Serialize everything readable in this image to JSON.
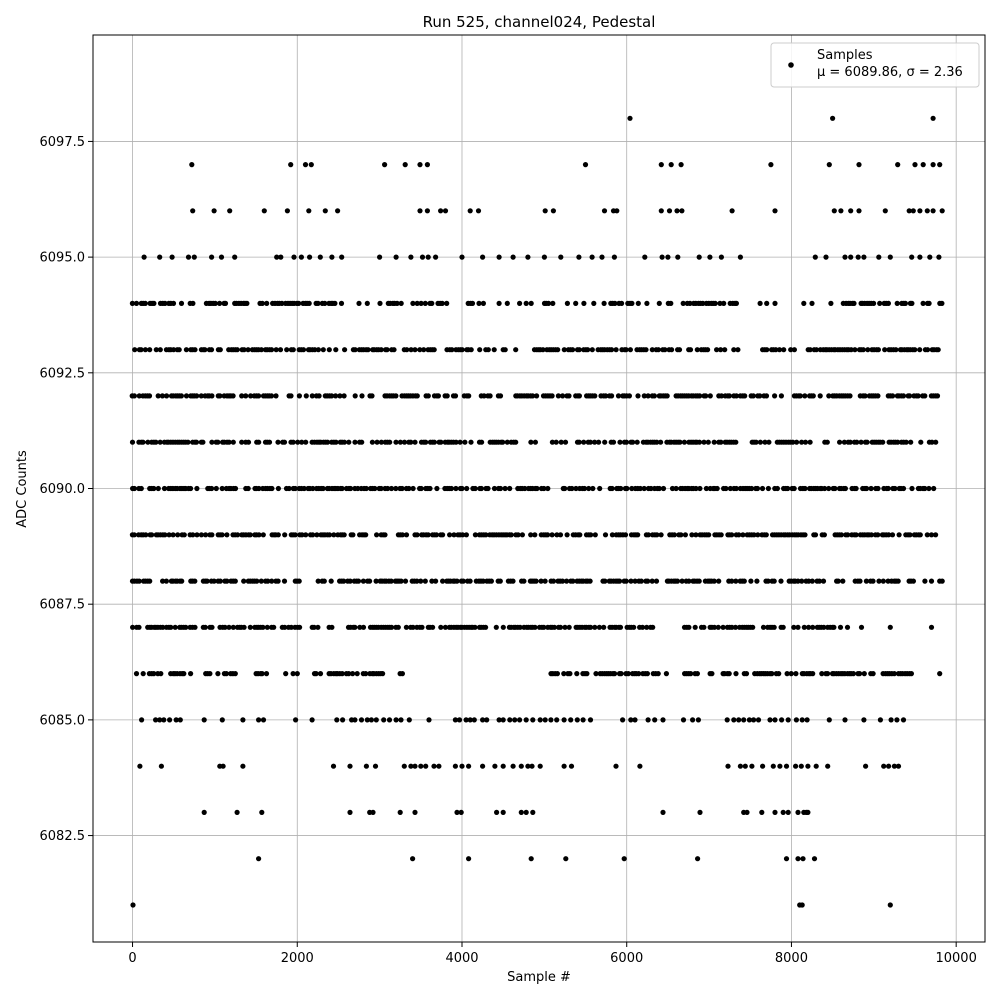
{
  "chart_data": {
    "type": "scatter",
    "title": "Run 525, channel024, Pedestal",
    "xlabel": "Sample #",
    "ylabel": "ADC Counts",
    "xlim": [
      -480,
      10350
    ],
    "ylim": [
      6080.2,
      6099.8
    ],
    "x_ticks": [
      0,
      2000,
      4000,
      6000,
      8000,
      10000
    ],
    "x_tick_labels": [
      "0",
      "2000",
      "4000",
      "6000",
      "8000",
      "10000"
    ],
    "y_ticks": [
      6082.5,
      6085.0,
      6087.5,
      6090.0,
      6092.5,
      6095.0,
      6097.5
    ],
    "y_tick_labels": [
      "6082.5",
      "6085.0",
      "6087.5",
      "6090.0",
      "6092.5",
      "6095.0",
      "6097.5"
    ],
    "grid": true,
    "legend": {
      "placement": "top-right",
      "label_line1": "Samples",
      "label_line2": "μ = 6089.86, σ = 2.36"
    },
    "marker_color": "#000000",
    "series": [
      {
        "name": "Samples",
        "points": [
          [
            6040,
            6098
          ],
          [
            8500,
            6098
          ],
          [
            9720,
            6098
          ],
          [
            720,
            6097
          ],
          [
            1920,
            6097
          ],
          [
            2100,
            6097
          ],
          [
            2170,
            6097
          ],
          [
            3060,
            6097
          ],
          [
            3310,
            6097
          ],
          [
            3490,
            6097
          ],
          [
            3580,
            6097
          ],
          [
            5500,
            6097
          ],
          [
            6420,
            6097
          ],
          [
            6540,
            6097
          ],
          [
            6660,
            6097
          ],
          [
            7750,
            6097
          ],
          [
            8460,
            6097
          ],
          [
            8820,
            6097
          ],
          [
            9290,
            6097
          ],
          [
            9500,
            6097
          ],
          [
            9600,
            6097
          ],
          [
            9720,
            6097
          ],
          [
            9800,
            6097
          ],
          [
            730,
            6096
          ],
          [
            990,
            6096
          ],
          [
            1180,
            6096
          ],
          [
            1600,
            6096
          ],
          [
            1880,
            6096
          ],
          [
            2140,
            6096
          ],
          [
            2340,
            6096
          ],
          [
            2490,
            6096
          ],
          [
            3490,
            6096
          ],
          [
            3580,
            6096
          ],
          [
            3740,
            6096
          ],
          [
            3800,
            6096
          ],
          [
            4100,
            6096
          ],
          [
            4200,
            6096
          ],
          [
            5010,
            6096
          ],
          [
            5110,
            6096
          ],
          [
            5730,
            6096
          ],
          [
            5840,
            6096
          ],
          [
            5880,
            6096
          ],
          [
            6420,
            6096
          ],
          [
            6520,
            6096
          ],
          [
            6610,
            6096
          ],
          [
            6670,
            6096
          ],
          [
            7280,
            6096
          ],
          [
            7800,
            6096
          ],
          [
            8520,
            6096
          ],
          [
            8600,
            6096
          ],
          [
            8720,
            6096
          ],
          [
            8820,
            6096
          ],
          [
            9140,
            6096
          ],
          [
            9430,
            6096
          ],
          [
            9480,
            6096
          ],
          [
            9560,
            6096
          ],
          [
            9650,
            6096
          ],
          [
            9720,
            6096
          ],
          [
            9830,
            6096
          ],
          [
            140,
            6095
          ],
          [
            330,
            6095
          ],
          [
            480,
            6095
          ],
          [
            680,
            6095
          ],
          [
            750,
            6095
          ],
          [
            960,
            6095
          ],
          [
            1080,
            6095
          ],
          [
            1240,
            6095
          ],
          [
            1750,
            6095
          ],
          [
            1800,
            6095
          ],
          [
            1960,
            6095
          ],
          [
            2050,
            6095
          ],
          [
            2150,
            6095
          ],
          [
            2280,
            6095
          ],
          [
            2420,
            6095
          ],
          [
            2540,
            6095
          ],
          [
            3000,
            6095
          ],
          [
            3200,
            6095
          ],
          [
            3380,
            6095
          ],
          [
            3520,
            6095
          ],
          [
            3590,
            6095
          ],
          [
            3680,
            6095
          ],
          [
            4000,
            6095
          ],
          [
            4250,
            6095
          ],
          [
            4450,
            6095
          ],
          [
            4620,
            6095
          ],
          [
            4800,
            6095
          ],
          [
            5000,
            6095
          ],
          [
            5200,
            6095
          ],
          [
            5420,
            6095
          ],
          [
            5580,
            6095
          ],
          [
            5700,
            6095
          ],
          [
            5850,
            6095
          ],
          [
            6220,
            6095
          ],
          [
            6430,
            6095
          ],
          [
            6500,
            6095
          ],
          [
            6620,
            6095
          ],
          [
            6880,
            6095
          ],
          [
            7010,
            6095
          ],
          [
            7150,
            6095
          ],
          [
            7380,
            6095
          ],
          [
            8290,
            6095
          ],
          [
            8420,
            6095
          ],
          [
            8650,
            6095
          ],
          [
            8720,
            6095
          ],
          [
            8810,
            6095
          ],
          [
            8880,
            6095
          ],
          [
            9060,
            6095
          ],
          [
            9200,
            6095
          ],
          [
            9460,
            6095
          ],
          [
            9560,
            6095
          ],
          [
            9680,
            6095
          ],
          [
            9790,
            6095
          ],
          [
            6,
            6081
          ],
          [
            8100,
            6081
          ],
          [
            8130,
            6081
          ],
          [
            9200,
            6081
          ],
          [
            1530,
            6082
          ],
          [
            3400,
            6082
          ],
          [
            4080,
            6082
          ],
          [
            4840,
            6082
          ],
          [
            5260,
            6082
          ],
          [
            5970,
            6082
          ],
          [
            6860,
            6082
          ],
          [
            7940,
            6082
          ],
          [
            8080,
            6082
          ],
          [
            8140,
            6082
          ],
          [
            8280,
            6082
          ],
          [
            870,
            6083
          ],
          [
            1270,
            6083
          ],
          [
            1570,
            6083
          ],
          [
            2640,
            6083
          ],
          [
            2880,
            6083
          ],
          [
            2920,
            6083
          ],
          [
            3250,
            6083
          ],
          [
            3430,
            6083
          ],
          [
            3940,
            6083
          ],
          [
            3990,
            6083
          ],
          [
            4420,
            6083
          ],
          [
            4500,
            6083
          ],
          [
            4720,
            6083
          ],
          [
            4780,
            6083
          ],
          [
            4860,
            6083
          ],
          [
            6440,
            6083
          ],
          [
            6890,
            6083
          ],
          [
            7420,
            6083
          ],
          [
            7460,
            6083
          ],
          [
            7640,
            6083
          ],
          [
            7800,
            6083
          ],
          [
            7900,
            6083
          ],
          [
            7960,
            6083
          ],
          [
            8080,
            6083
          ],
          [
            8150,
            6083
          ],
          [
            8180,
            6083
          ],
          [
            8200,
            6083
          ],
          [
            90,
            6084
          ],
          [
            350,
            6084
          ],
          [
            1060,
            6084
          ],
          [
            1100,
            6084
          ],
          [
            1340,
            6084
          ],
          [
            2440,
            6084
          ],
          [
            2640,
            6084
          ],
          [
            2840,
            6084
          ],
          [
            2950,
            6084
          ],
          [
            3300,
            6084
          ],
          [
            3380,
            6084
          ],
          [
            3430,
            6084
          ],
          [
            3500,
            6084
          ],
          [
            3560,
            6084
          ],
          [
            3660,
            6084
          ],
          [
            3720,
            6084
          ],
          [
            3920,
            6084
          ],
          [
            4000,
            6084
          ],
          [
            4080,
            6084
          ],
          [
            4250,
            6084
          ],
          [
            4400,
            6084
          ],
          [
            4500,
            6084
          ],
          [
            4620,
            6084
          ],
          [
            4720,
            6084
          ],
          [
            4800,
            6084
          ],
          [
            4850,
            6084
          ],
          [
            4950,
            6084
          ],
          [
            5240,
            6084
          ],
          [
            5330,
            6084
          ],
          [
            5870,
            6084
          ],
          [
            6160,
            6084
          ],
          [
            7230,
            6084
          ],
          [
            7380,
            6084
          ],
          [
            7440,
            6084
          ],
          [
            7520,
            6084
          ],
          [
            7650,
            6084
          ],
          [
            7780,
            6084
          ],
          [
            7860,
            6084
          ],
          [
            7940,
            6084
          ],
          [
            8050,
            6084
          ],
          [
            8120,
            6084
          ],
          [
            8200,
            6084
          ],
          [
            8300,
            6084
          ],
          [
            8440,
            6084
          ],
          [
            8900,
            6084
          ],
          [
            9120,
            6084
          ],
          [
            9180,
            6084
          ],
          [
            9250,
            6084
          ],
          [
            9300,
            6084
          ]
        ],
        "dense_levels": [
          {
            "y": 6086,
            "segments": [
              [
                0,
                1250
              ],
              [
                1500,
                1650
              ],
              [
                2180,
                3100
              ],
              [
                3250,
                3350
              ],
              [
                5000,
                6500
              ],
              [
                6700,
                9500
              ]
            ],
            "extra_x": [
              1860,
              1950,
              2000,
              9800
            ]
          },
          {
            "y": 6087,
            "segments": [
              [
                0,
                2050
              ],
              [
                2150,
                2400
              ],
              [
                2600,
                6400
              ],
              [
                6700,
                8600
              ]
            ],
            "extra_x": [
              2420,
              8680,
              8850,
              9200,
              9700
            ]
          },
          {
            "y": 6088,
            "segments": [
              [
                0,
                2050
              ],
              [
                2200,
                9500
              ]
            ],
            "extra_x": [
              9620,
              9700,
              9800,
              9830
            ]
          },
          {
            "y": 6089,
            "segments": [
              [
                0,
                9580
              ]
            ],
            "extra_x": [
              9650,
              9700,
              9750
            ]
          },
          {
            "y": 6090,
            "segments": [
              [
                0,
                9830
              ]
            ],
            "extra_x": []
          },
          {
            "y": 6091,
            "segments": [
              [
                0,
                5300
              ],
              [
                5400,
                7400
              ],
              [
                7520,
                9830
              ]
            ],
            "extra_x": []
          },
          {
            "y": 6092,
            "segments": [
              [
                0,
                4500
              ],
              [
                4650,
                7700
              ],
              [
                7800,
                9830
              ]
            ],
            "extra_x": []
          },
          {
            "y": 6093,
            "segments": [
              [
                0,
                4700
              ],
              [
                4800,
                7220
              ],
              [
                7650,
                8050
              ],
              [
                8200,
                9830
              ]
            ],
            "extra_x": [
              7300,
              7350
            ]
          },
          {
            "y": 6094,
            "segments": [
              [
                0,
                750
              ],
              [
                900,
                1450
              ],
              [
                1550,
                2550
              ],
              [
                3000,
                3300
              ],
              [
                3400,
                3900
              ],
              [
                4000,
                4350
              ],
              [
                5000,
                5150
              ],
              [
                5700,
                6250
              ],
              [
                6400,
                7350
              ],
              [
                8400,
                9830
              ]
            ],
            "extra_x": [
              2750,
              2850,
              4450,
              4550,
              4700,
              4780,
              4840,
              5280,
              5380,
              5480,
              5600,
              7620,
              7700,
              7800,
              8150,
              8250
            ]
          }
        ],
        "dense_seed": 525,
        "dense_fill": 0.6,
        "sparse_level_6085": [
          110,
          280,
          330,
          380,
          450,
          530,
          580,
          870,
          1090,
          1340,
          1530,
          1590,
          1980,
          2180,
          2480,
          2550,
          2660,
          2700,
          2780,
          2850,
          2900,
          2960,
          3050,
          3120,
          3200,
          3260,
          3360,
          3600,
          3920,
          3970,
          4050,
          4100,
          4150,
          4250,
          4300,
          4450,
          4500,
          4580,
          4640,
          4700,
          4780,
          4860,
          4950,
          5010,
          5080,
          5150,
          5240,
          5320,
          5400,
          5470,
          5560,
          5950,
          6050,
          6100,
          6260,
          6340,
          6440,
          6690,
          6800,
          6870,
          7220,
          7300,
          7360,
          7420,
          7490,
          7540,
          7600,
          7740,
          7800,
          7880,
          7960,
          8060,
          8130,
          8190,
          8460,
          8650,
          8880,
          9080,
          9210,
          9280,
          9360
        ]
      }
    ]
  }
}
